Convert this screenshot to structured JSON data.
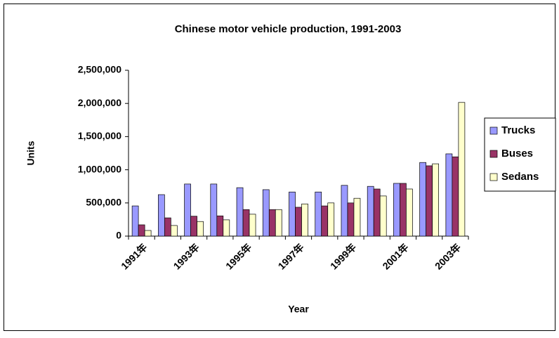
{
  "chart_data": {
    "type": "bar",
    "title": "Chinese motor vehicle production, 1991-2003",
    "x_label": "Year",
    "y_label": "Units",
    "categories": [
      "1991年",
      null,
      "1993年",
      null,
      "1995年",
      null,
      "1997年",
      null,
      "1999年",
      null,
      "2001年",
      null,
      "2003年"
    ],
    "series": [
      {
        "name": "Trucks",
        "color": "#9999ff",
        "values": [
          455000,
          625000,
          785000,
          785000,
          730000,
          700000,
          665000,
          665000,
          765000,
          750000,
          795000,
          1110000,
          1240000
        ]
      },
      {
        "name": "Buses",
        "color": "#993366",
        "values": [
          170000,
          275000,
          300000,
          305000,
          400000,
          400000,
          435000,
          455000,
          500000,
          710000,
          795000,
          1060000,
          1195000
        ]
      },
      {
        "name": "Sedans",
        "color": "#ffffcc",
        "values": [
          85000,
          160000,
          220000,
          245000,
          330000,
          400000,
          485000,
          500000,
          570000,
          605000,
          710000,
          1090000,
          2015000
        ]
      }
    ],
    "ylim": [
      0,
      2500000
    ],
    "yticks": [
      0,
      {
        "value": 500000,
        "label": "500,000"
      },
      {
        "value": 1000000,
        "label": "1,000,000"
      },
      {
        "value": 1500000,
        "label": "1,500,000"
      },
      {
        "value": 2000000,
        "label": "2,000,000"
      },
      {
        "value": 2500000,
        "label": "2,500,000"
      }
    ],
    "legend": "right"
  }
}
